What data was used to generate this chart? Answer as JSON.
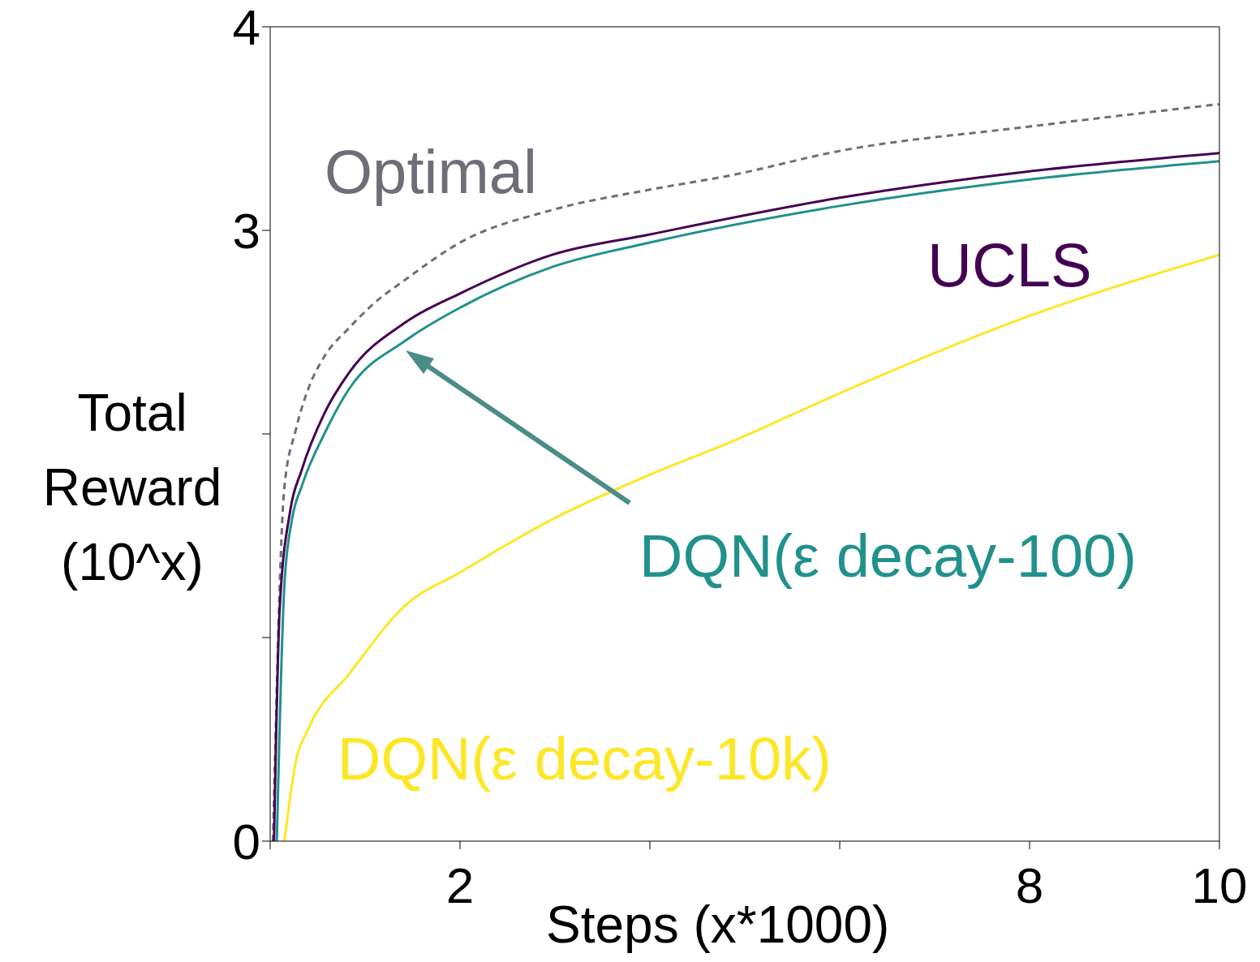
{
  "chart_data": {
    "type": "line",
    "xlabel": "Steps (x*1000)",
    "ylabel": "Total Reward (10^x)",
    "xlim": [
      0,
      10
    ],
    "xticks": [
      {
        "value": 0,
        "label": null
      },
      2,
      {
        "value": 4,
        "label": null
      },
      {
        "value": 6,
        "label": null
      },
      8,
      10
    ],
    "ylim": [
      0,
      4
    ],
    "yticks": [
      0,
      {
        "value": 1,
        "label": null
      },
      {
        "value": 2,
        "label": null
      },
      3,
      4
    ],
    "legend": false,
    "marker": "none",
    "series": [
      {
        "name": "Optimal",
        "color": "#6e6e78",
        "line_style": "dashed",
        "x": [
          0.03,
          0.15,
          0.27,
          0.4,
          0.57,
          0.83,
          1.09,
          1.43,
          2,
          2.97,
          4,
          4.85,
          6,
          8,
          10
        ],
        "values": [
          0,
          1.74,
          2.02,
          2.22,
          2.38,
          2.52,
          2.64,
          2.76,
          2.94,
          3.1,
          3.2,
          3.27,
          3.39,
          3.51,
          3.62
        ]
      },
      {
        "name": "UCLS",
        "color": "#440154",
        "line_style": "solid",
        "x": [
          0.04,
          0.1,
          0.21,
          0.33,
          0.57,
          0.83,
          1.43,
          2,
          2.97,
          4,
          6,
          8,
          10
        ],
        "values": [
          0,
          1.14,
          1.62,
          1.82,
          2.1,
          2.3,
          2.55,
          2.69,
          2.88,
          2.98,
          3.16,
          3.29,
          3.38
        ]
      },
      {
        "name": "DQN(ε decay-100)",
        "color": "#21918c",
        "line_style": "solid",
        "x": [
          0.07,
          0.15,
          0.23,
          0.33,
          0.57,
          0.83,
          1.43,
          2,
          2.97,
          4,
          6,
          8,
          10
        ],
        "values": [
          0,
          1.26,
          1.58,
          1.74,
          2.0,
          2.22,
          2.46,
          2.62,
          2.82,
          2.94,
          3.12,
          3.25,
          3.34
        ]
      },
      {
        "name": "DQN(ε decay-10k)",
        "color": "#fde725",
        "line_style": "solid",
        "x": [
          0.15,
          0.27,
          0.4,
          0.83,
          1.43,
          2,
          2.97,
          4,
          4.85,
          6,
          8,
          10
        ],
        "values": [
          0,
          0.39,
          0.55,
          0.82,
          1.16,
          1.32,
          1.58,
          1.8,
          1.96,
          2.2,
          2.58,
          2.88
        ]
      }
    ]
  }
}
